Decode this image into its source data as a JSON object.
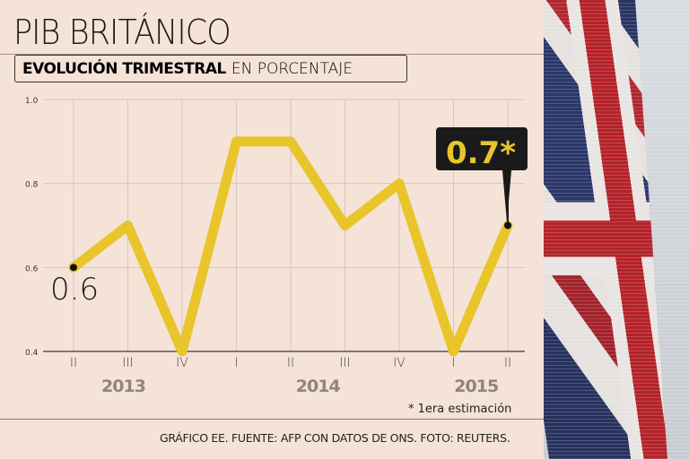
{
  "header": {
    "title": "PIB BRITÁNICO",
    "subtitle_bold": "EVOLUCIÓN TRIMESTRAL",
    "subtitle_light": "EN PORCENTAJE"
  },
  "chart_data": {
    "type": "line",
    "title": "PIB BRITÁNICO",
    "subtitle": "EVOLUCIÓN TRIMESTRAL EN PORCENTAJE",
    "categories": [
      "II",
      "III",
      "IV",
      "I",
      "II",
      "III",
      "IV",
      "I",
      "II"
    ],
    "years": [
      {
        "label": "2013",
        "from": 0,
        "to": 2
      },
      {
        "label": "2014",
        "from": 3,
        "to": 6
      },
      {
        "label": "2015",
        "from": 7,
        "to": 8
      }
    ],
    "values": [
      0.6,
      0.7,
      0.4,
      0.9,
      0.9,
      0.7,
      0.8,
      0.4,
      0.7
    ],
    "ylim": [
      0.4,
      1.0
    ],
    "yticks": [
      "0.4",
      "0.6",
      "0.8",
      "1.0"
    ],
    "ytick_values": [
      0.4,
      0.6,
      0.8,
      1.0
    ],
    "grid": "vertical",
    "line_color": "#e8c52a",
    "first_label": "0.6",
    "last_label": "0.7*"
  },
  "footer": {
    "note": "* 1era estimación",
    "source": "GRÁFICO EE. FUENTE: AFP CON DATOS DE ONS. FOTO: REUTERS."
  }
}
